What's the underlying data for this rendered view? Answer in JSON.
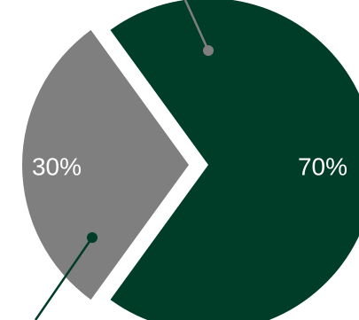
{
  "chart_data": {
    "type": "pie",
    "slices": [
      {
        "label": "70%",
        "value": 70,
        "color": "#003d28"
      },
      {
        "label": "30%",
        "value": 30,
        "color": "#7f7f7f"
      }
    ],
    "leader_line_colors": [
      "#7f7f7f",
      "#003d28"
    ]
  }
}
